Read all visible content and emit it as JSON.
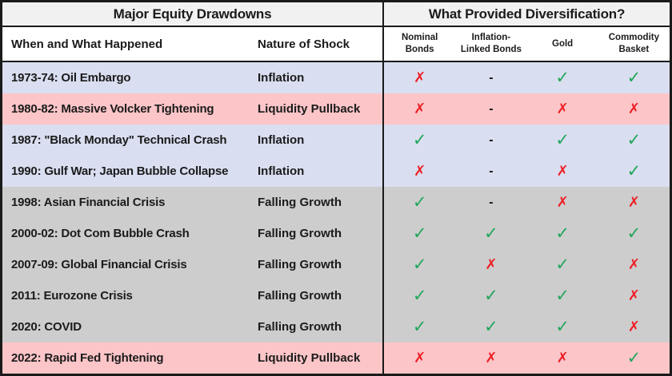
{
  "header": {
    "left_title": "Major Equity Drawdowns",
    "right_title": "What Provided Diversification?"
  },
  "columns": {
    "when": "When and What Happened",
    "shock": "Nature of Shock",
    "assets": [
      "Nominal\nBonds",
      "Inflation-\nLinked Bonds",
      "Gold",
      "Commodity\nBasket"
    ]
  },
  "palette": {
    "inflation": "#d9def0",
    "liquidity": "#fcc5c8",
    "growth": "#cdcdcd",
    "title_bg": "#f1f1f1",
    "border": "#1a1a1a",
    "check": "#21a65a",
    "x": "#ee1f26",
    "dash": "#141414"
  },
  "symbols": {
    "check": {
      "glyph": "✓",
      "name": "check-icon"
    },
    "x": {
      "glyph": "✗",
      "name": "x-icon"
    },
    "dash": {
      "glyph": "-",
      "name": "dash-icon"
    }
  },
  "rows": [
    {
      "event": "1973-74: Oil Embargo",
      "shock": "Inflation",
      "color": "inflation",
      "marks": [
        "x",
        "dash",
        "check",
        "check"
      ]
    },
    {
      "event": "1980-82: Massive Volcker Tightening",
      "shock": "Liquidity Pullback",
      "color": "liquidity",
      "marks": [
        "x",
        "dash",
        "x",
        "x"
      ]
    },
    {
      "event": "1987: \"Black Monday\" Technical Crash",
      "shock": "Inflation",
      "color": "inflation",
      "marks": [
        "check",
        "dash",
        "check",
        "check"
      ]
    },
    {
      "event": "1990: Gulf War; Japan Bubble Collapse",
      "shock": "Inflation",
      "color": "inflation",
      "marks": [
        "x",
        "dash",
        "x",
        "check"
      ]
    },
    {
      "event": "1998: Asian Financial Crisis",
      "shock": "Falling Growth",
      "color": "growth",
      "marks": [
        "check",
        "dash",
        "x",
        "x"
      ]
    },
    {
      "event": "2000-02: Dot Com Bubble Crash",
      "shock": "Falling Growth",
      "color": "growth",
      "marks": [
        "check",
        "check",
        "check",
        "check"
      ]
    },
    {
      "event": "2007-09: Global Financial Crisis",
      "shock": "Falling Growth",
      "color": "growth",
      "marks": [
        "check",
        "x",
        "check",
        "x"
      ]
    },
    {
      "event": "2011: Eurozone Crisis",
      "shock": "Falling Growth",
      "color": "growth",
      "marks": [
        "check",
        "check",
        "check",
        "x"
      ]
    },
    {
      "event": "2020: COVID",
      "shock": "Falling Growth",
      "color": "growth",
      "marks": [
        "check",
        "check",
        "check",
        "x"
      ]
    },
    {
      "event": "2022: Rapid Fed Tightening",
      "shock": "Liquidity Pullback",
      "color": "liquidity",
      "marks": [
        "x",
        "x",
        "x",
        "check"
      ]
    }
  ],
  "chart_data": {
    "type": "table",
    "title": "Major Equity Drawdowns — What Provided Diversification?",
    "columns": [
      "When and What Happened",
      "Nature of Shock",
      "Nominal Bonds",
      "Inflation-Linked Bonds",
      "Gold",
      "Commodity Basket"
    ],
    "rows": [
      [
        "1973-74: Oil Embargo",
        "Inflation",
        "✗",
        "-",
        "✓",
        "✓"
      ],
      [
        "1980-82: Massive Volcker Tightening",
        "Liquidity Pullback",
        "✗",
        "-",
        "✗",
        "✗"
      ],
      [
        "1987: \"Black Monday\" Technical Crash",
        "Inflation",
        "✓",
        "-",
        "✓",
        "✓"
      ],
      [
        "1990: Gulf War; Japan Bubble Collapse",
        "Inflation",
        "✗",
        "-",
        "✗",
        "✓"
      ],
      [
        "1998: Asian Financial Crisis",
        "Falling Growth",
        "✓",
        "-",
        "✗",
        "✗"
      ],
      [
        "2000-02: Dot Com Bubble Crash",
        "Falling Growth",
        "✓",
        "✓",
        "✓",
        "✓"
      ],
      [
        "2007-09: Global Financial Crisis",
        "Falling Growth",
        "✓",
        "✗",
        "✓",
        "✗"
      ],
      [
        "2011: Eurozone Crisis",
        "Falling Growth",
        "✓",
        "✓",
        "✓",
        "✗"
      ],
      [
        "2020: COVID",
        "Falling Growth",
        "✓",
        "✓",
        "✓",
        "✗"
      ],
      [
        "2022: Rapid Fed Tightening",
        "Liquidity Pullback",
        "✗",
        "✗",
        "✗",
        "✓"
      ]
    ],
    "row_color_legend": {
      "Inflation": "#d9def0",
      "Liquidity Pullback": "#fcc5c8",
      "Falling Growth": "#cdcdcd"
    }
  }
}
